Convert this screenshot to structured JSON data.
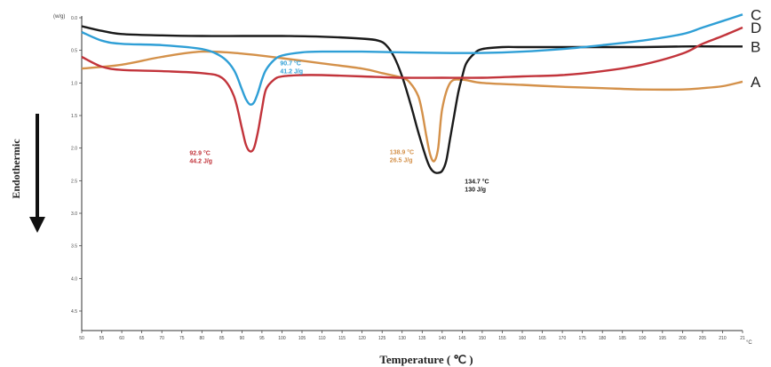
{
  "chart_data": {
    "type": "line",
    "xlabel": "Temperature ( ℃ )",
    "ylabel": "Endothermic",
    "y_unit": "(w/g)",
    "x_unit": "°C",
    "xlim": [
      50,
      215
    ],
    "ylim": [
      0.0,
      4.8
    ],
    "grid": false,
    "x_ticks": [
      "50",
      "55",
      "60",
      "65",
      "70",
      "75",
      "80",
      "85",
      "90",
      "95",
      "100",
      "105",
      "110",
      "115",
      "120",
      "125",
      "130",
      "135",
      "140",
      "145",
      "150",
      "155",
      "160",
      "165",
      "170",
      "175",
      "180",
      "185",
      "190",
      "195",
      "200",
      "205",
      "210",
      "21"
    ],
    "y_ticks": [
      "0.0",
      "0.5",
      "1.0",
      "1.5",
      "2.0",
      "2.5",
      "3.0",
      "3.5",
      "4.0",
      "4.5"
    ],
    "series": [
      {
        "name": "A",
        "color": "#d4914a",
        "x": [
          50,
          60,
          70,
          80,
          90,
          100,
          110,
          120,
          125,
          130,
          132,
          134,
          135,
          136,
          137,
          138,
          139,
          140,
          142,
          145,
          150,
          160,
          170,
          180,
          190,
          200,
          205,
          210,
          215
        ],
        "y": [
          0.78,
          0.72,
          0.6,
          0.52,
          0.55,
          0.62,
          0.7,
          0.78,
          0.85,
          0.92,
          1.0,
          1.2,
          1.45,
          1.8,
          2.1,
          2.2,
          2.0,
          1.4,
          1.0,
          0.95,
          1.0,
          1.03,
          1.06,
          1.08,
          1.1,
          1.1,
          1.08,
          1.05,
          0.98
        ]
      },
      {
        "name": "B",
        "color": "#1a1a1a",
        "x": [
          50,
          55,
          60,
          70,
          80,
          90,
          100,
          110,
          120,
          124,
          126,
          128,
          130,
          132,
          134,
          136,
          137,
          138,
          139,
          140,
          141,
          142,
          143,
          144,
          145,
          146,
          148,
          150,
          155,
          160,
          170,
          180,
          190,
          200,
          210,
          215
        ],
        "y": [
          0.13,
          0.2,
          0.25,
          0.27,
          0.28,
          0.28,
          0.28,
          0.29,
          0.32,
          0.35,
          0.42,
          0.6,
          0.9,
          1.3,
          1.75,
          2.15,
          2.3,
          2.37,
          2.38,
          2.35,
          2.2,
          1.85,
          1.5,
          1.15,
          0.9,
          0.7,
          0.55,
          0.48,
          0.45,
          0.45,
          0.45,
          0.45,
          0.45,
          0.44,
          0.44,
          0.44
        ]
      },
      {
        "name": "C",
        "color": "#2f9fd6",
        "x": [
          50,
          55,
          60,
          70,
          80,
          85,
          88,
          90,
          91,
          92,
          93,
          94,
          95,
          96,
          98,
          100,
          105,
          110,
          120,
          130,
          140,
          150,
          160,
          170,
          180,
          190,
          200,
          205,
          210,
          215
        ],
        "y": [
          0.22,
          0.35,
          0.4,
          0.42,
          0.48,
          0.6,
          0.8,
          1.1,
          1.25,
          1.33,
          1.3,
          1.15,
          0.95,
          0.8,
          0.65,
          0.58,
          0.53,
          0.52,
          0.52,
          0.53,
          0.54,
          0.54,
          0.52,
          0.48,
          0.42,
          0.35,
          0.25,
          0.15,
          0.05,
          -0.05
        ]
      },
      {
        "name": "D",
        "color": "#c2343b",
        "x": [
          50,
          55,
          60,
          70,
          80,
          85,
          88,
          90,
          91,
          92,
          93,
          94,
          95,
          96,
          98,
          100,
          105,
          110,
          120,
          130,
          140,
          150,
          160,
          170,
          180,
          190,
          200,
          205,
          210,
          215
        ],
        "y": [
          0.6,
          0.75,
          0.8,
          0.82,
          0.85,
          0.92,
          1.2,
          1.7,
          1.95,
          2.05,
          2.0,
          1.75,
          1.4,
          1.1,
          0.95,
          0.9,
          0.88,
          0.88,
          0.9,
          0.92,
          0.92,
          0.92,
          0.9,
          0.88,
          0.82,
          0.72,
          0.55,
          0.4,
          0.28,
          0.15
        ]
      }
    ],
    "curve_labels": [
      "C",
      "D",
      "B",
      "A"
    ],
    "annotations": [
      {
        "series": "D",
        "lines": [
          "92.9 °C",
          "44.2 J/g"
        ],
        "color": "#c2343b"
      },
      {
        "series": "C",
        "lines": [
          "90.7 °C",
          "41.2 J/g"
        ],
        "color": "#2f9fd6"
      },
      {
        "series": "A",
        "lines": [
          "138.9 °C",
          "26.5 J/g"
        ],
        "color": "#d4914a"
      },
      {
        "series": "B",
        "lines": [
          "134.7 °C",
          "130 J/g"
        ],
        "color": "#1a1a1a"
      }
    ]
  }
}
